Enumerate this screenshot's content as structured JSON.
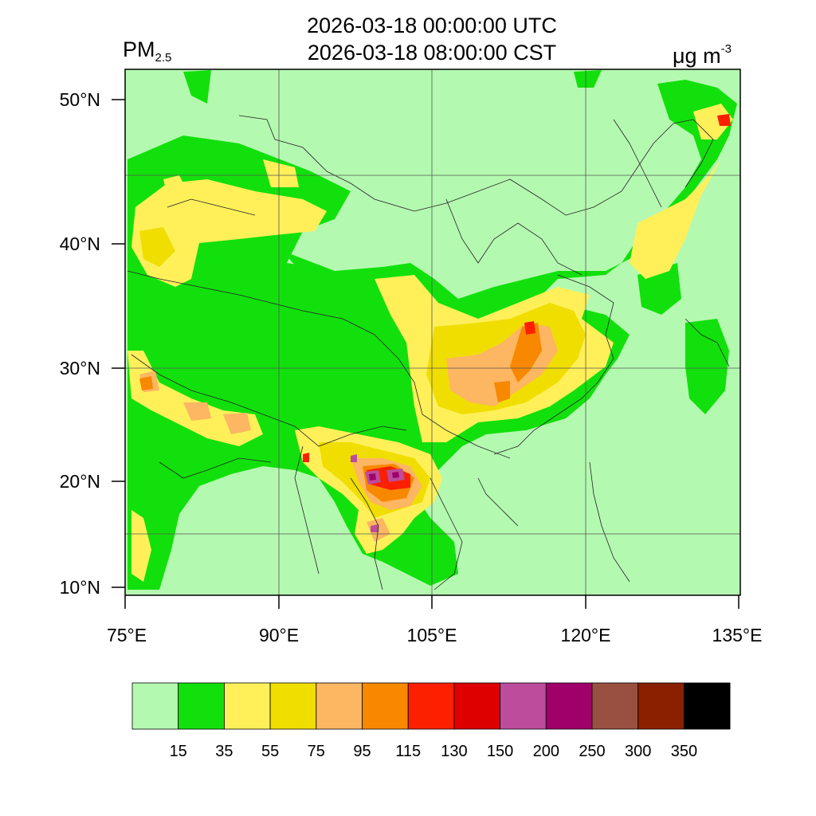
{
  "title": {
    "line1": "2026-03-18 00:00:00 UTC",
    "line2": "2026-03-18 08:00:00 CST"
  },
  "variable": {
    "name": "PM",
    "subscript": "2.5"
  },
  "units": {
    "base": "μg m",
    "exponent": "-3"
  },
  "map": {
    "lon_range": [
      75,
      135
    ],
    "lat_range": [
      9.5,
      52
    ],
    "lat_ticks": [
      "10°N",
      "20°N",
      "30°N",
      "40°N",
      "50°N"
    ],
    "lon_ticks": [
      "75°E",
      "90°E",
      "105°E",
      "120°E",
      "135°E"
    ],
    "gridlines": true
  },
  "colorbar": {
    "colors": [
      "#b4f9b0",
      "#12e00c",
      "#fff05a",
      "#f0de00",
      "#fdb662",
      "#f88800",
      "#fc2000",
      "#de0000",
      "#bc4c9c",
      "#a0006a",
      "#9a5040",
      "#8a2000",
      "#000000"
    ],
    "labels": [
      "15",
      "35",
      "55",
      "75",
      "95",
      "115",
      "130",
      "150",
      "200",
      "250",
      "300",
      "350"
    ]
  }
}
